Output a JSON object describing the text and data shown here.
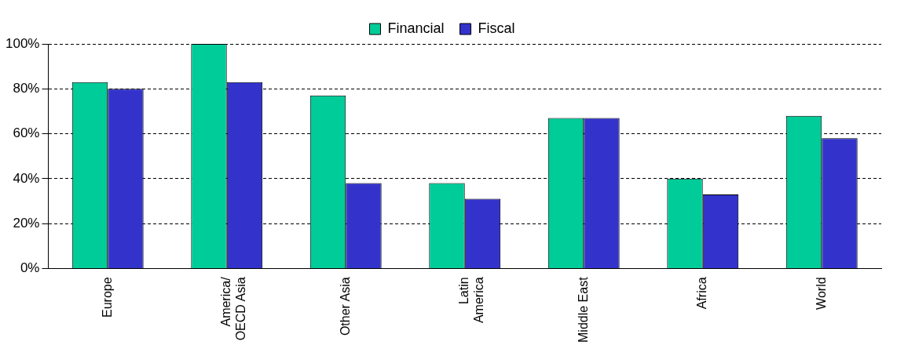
{
  "chart_data": {
    "type": "bar",
    "categories": [
      "Europe",
      "America/\nOECD Asia",
      "Other Asia",
      "Latin\nAmerica",
      "Middle East",
      "Africa",
      "World"
    ],
    "series": [
      {
        "name": "Financial",
        "color": "#00cc99",
        "values": [
          83,
          100,
          77,
          38,
          67,
          40,
          68
        ]
      },
      {
        "name": "Fiscal",
        "color": "#3333cc",
        "values": [
          80,
          83,
          38,
          31,
          67,
          33,
          58
        ]
      }
    ],
    "ylim": [
      0,
      100
    ],
    "yticks": [
      {
        "value": 0,
        "label": "0%"
      },
      {
        "value": 20,
        "label": "20%"
      },
      {
        "value": 40,
        "label": "40%"
      },
      {
        "value": 60,
        "label": "60%"
      },
      {
        "value": 80,
        "label": "80%"
      },
      {
        "value": 100,
        "label": "100%"
      }
    ],
    "grid": "y",
    "legend": "top"
  }
}
